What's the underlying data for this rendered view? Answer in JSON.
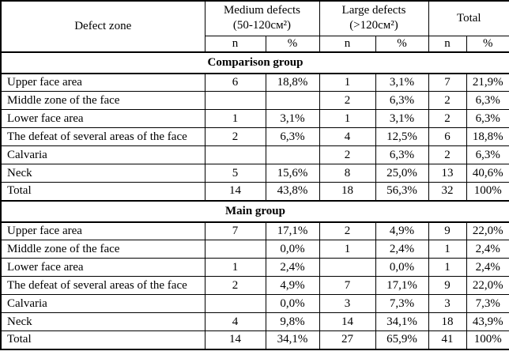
{
  "table": {
    "header": {
      "defect_zone": "Defect zone",
      "column_groups": [
        {
          "line1": "Medium defects",
          "line2": "(50-120см²)"
        },
        {
          "line1": "Large defects",
          "line2": "(>120см²)"
        },
        {
          "line1": "Total",
          "line2": ""
        }
      ],
      "n_label": "n",
      "percent_label": "%"
    },
    "groups": [
      {
        "name": "Comparison group",
        "rows": [
          {
            "zone": "Upper face area",
            "medium_n": "6",
            "medium_pct": "18,8%",
            "large_n": "1",
            "large_pct": "3,1%",
            "total_n": "7",
            "total_pct": "21,9%"
          },
          {
            "zone": "Middle zone of the face",
            "medium_n": "",
            "medium_pct": "",
            "large_n": "2",
            "large_pct": "6,3%",
            "total_n": "2",
            "total_pct": "6,3%"
          },
          {
            "zone": "Lower face area",
            "medium_n": "1",
            "medium_pct": "3,1%",
            "large_n": "1",
            "large_pct": "3,1%",
            "total_n": "2",
            "total_pct": "6,3%"
          },
          {
            "zone": "The defeat of several areas of the face",
            "medium_n": "2",
            "medium_pct": "6,3%",
            "large_n": "4",
            "large_pct": "12,5%",
            "total_n": "6",
            "total_pct": "18,8%"
          },
          {
            "zone": "Calvaria",
            "medium_n": "",
            "medium_pct": "",
            "large_n": "2",
            "large_pct": "6,3%",
            "total_n": "2",
            "total_pct": "6,3%"
          },
          {
            "zone": "Neck",
            "medium_n": "5",
            "medium_pct": "15,6%",
            "large_n": "8",
            "large_pct": "25,0%",
            "total_n": "13",
            "total_pct": "40,6%"
          },
          {
            "zone": "Total",
            "medium_n": "14",
            "medium_pct": "43,8%",
            "large_n": "18",
            "large_pct": "56,3%",
            "total_n": "32",
            "total_pct": "100%"
          }
        ]
      },
      {
        "name": "Main group",
        "rows": [
          {
            "zone": "Upper face area",
            "medium_n": "7",
            "medium_pct": "17,1%",
            "large_n": "2",
            "large_pct": "4,9%",
            "total_n": "9",
            "total_pct": "22,0%"
          },
          {
            "zone": "Middle zone of the face",
            "medium_n": "",
            "medium_pct": "0,0%",
            "large_n": "1",
            "large_pct": "2,4%",
            "total_n": "1",
            "total_pct": "2,4%"
          },
          {
            "zone": "Lower face area",
            "medium_n": "1",
            "medium_pct": "2,4%",
            "large_n": "",
            "large_pct": "0,0%",
            "total_n": "1",
            "total_pct": "2,4%"
          },
          {
            "zone": "The defeat of several areas of the face",
            "medium_n": "2",
            "medium_pct": "4,9%",
            "large_n": "7",
            "large_pct": "17,1%",
            "total_n": "9",
            "total_pct": "22,0%"
          },
          {
            "zone": "Calvaria",
            "medium_n": "",
            "medium_pct": "0,0%",
            "large_n": "3",
            "large_pct": "7,3%",
            "total_n": "3",
            "total_pct": "7,3%"
          },
          {
            "zone": "Neck",
            "medium_n": "4",
            "medium_pct": "9,8%",
            "large_n": "14",
            "large_pct": "34,1%",
            "total_n": "18",
            "total_pct": "43,9%"
          },
          {
            "zone": "Total",
            "medium_n": "14",
            "medium_pct": "34,1%",
            "large_n": "27",
            "large_pct": "65,9%",
            "total_n": "41",
            "total_pct": "100%"
          }
        ]
      }
    ],
    "colors": {
      "border": "#000000",
      "text": "#000000",
      "background": "#ffffff"
    }
  }
}
